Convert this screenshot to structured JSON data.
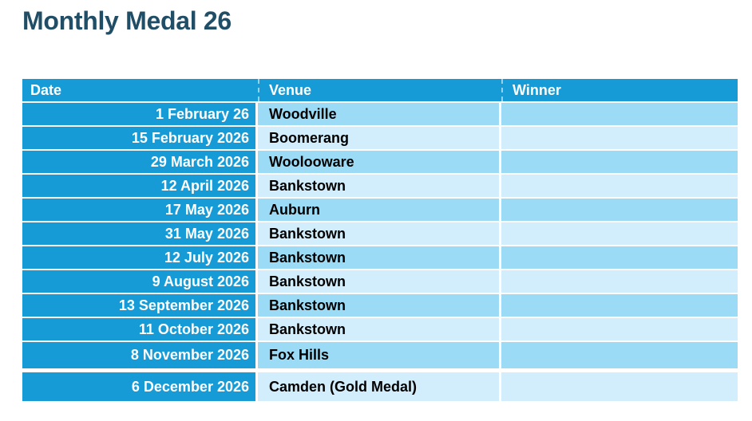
{
  "title": "Monthly Medal 26",
  "table": {
    "columns": [
      {
        "key": "date",
        "label": "Date"
      },
      {
        "key": "venue",
        "label": "Venue"
      },
      {
        "key": "winner",
        "label": "Winner"
      }
    ],
    "rows": [
      {
        "date": "1 February 26",
        "venue": "Woodville",
        "winner": ""
      },
      {
        "date": "15 February 2026",
        "venue": "Boomerang",
        "winner": ""
      },
      {
        "date": "29 March 2026",
        "venue": "Woolooware",
        "winner": ""
      },
      {
        "date": "12 April 2026",
        "venue": "Bankstown",
        "winner": ""
      },
      {
        "date": "17 May 2026",
        "venue": "Auburn",
        "winner": ""
      },
      {
        "date": "31 May 2026",
        "venue": "Bankstown",
        "winner": ""
      },
      {
        "date": "12 July 2026",
        "venue": "Bankstown",
        "winner": ""
      },
      {
        "date": "9 August 2026",
        "venue": "Bankstown",
        "winner": ""
      },
      {
        "date": "13 September 2026",
        "venue": "Bankstown",
        "winner": ""
      },
      {
        "date": "11 October 2026",
        "venue": "Bankstown",
        "winner": ""
      },
      {
        "date": "8 November 2026",
        "venue": "Fox Hills",
        "winner": ""
      },
      {
        "date": "6 December 2026",
        "venue": "Camden (Gold Medal)",
        "winner": ""
      }
    ]
  },
  "colors": {
    "header_blue": "#179BD7",
    "band_dark": "#9BDBF6",
    "band_light": "#D2EDFB",
    "title_color": "#1F4E66",
    "header_text": "#FFFFFF",
    "cell_text": "#000000"
  }
}
